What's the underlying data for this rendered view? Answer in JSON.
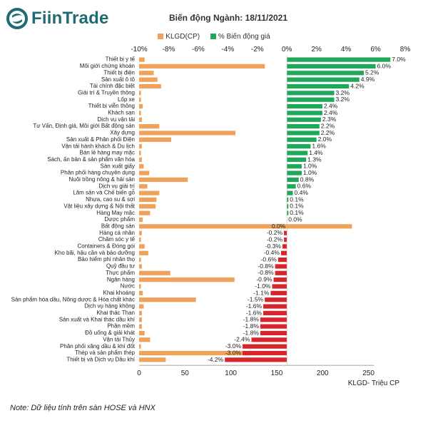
{
  "brand": {
    "name": "FiinTrade"
  },
  "note": "Note: Dữ liệu tính trên sàn HOSE và HNX",
  "colors": {
    "orange": "#F0A25A",
    "green": "#1FA85A",
    "red": "#D7262B",
    "axis": "#888888",
    "text": "#222222",
    "brand": "#1e6b73"
  },
  "chart_data": {
    "type": "bar",
    "title": "Biến động Ngành: 18/11/2021",
    "legend": [
      "KLGD(CP)",
      "% Biến động giá"
    ],
    "legend_position": "top",
    "categories": [
      "Thiết bị y tế",
      "Môi giới chứng khoán",
      "Thiết bị điện",
      "Sản xuất ô tô",
      "Tài chính đặc biệt",
      "Giải trí & Truyền thông",
      "Lốp xe",
      "Thiết bị viễn thông",
      "Khách sạn",
      "Dịch vụ vận tải",
      "Tư Vấn, Định giá, Môi giới Bất động sản",
      "Xây dựng",
      "Sản xuất & Phân phối Điện",
      "Vận tải hành khách & Du lịch",
      "Bán lẻ hàng may mặc",
      "Sách, ấn bản & sản phẩm văn hóa",
      "Sản xuất giấy",
      "Phân phối hàng chuyên dụng",
      "Nuôi trồng nông & hải sản",
      "Dịch vụ giải trí",
      "Lâm sản và Chế biến gỗ",
      "Nhựa, cao su & sợi",
      "Vật liệu xây dựng & Nội thất",
      "Hàng May mặc",
      "Dược phẩm",
      "Bất động sản",
      "Hàng cá nhân",
      "Chăm sóc y tế",
      "Containers & Đóng gói",
      "Kho bãi, hậu cần và bảo dưỡng",
      "Bảo hiểm phi nhân thọ",
      "Quỹ đầu tư",
      "Thực phẩm",
      "Ngân hàng",
      "Nước",
      "Khai khoáng",
      "Sản phẩm hóa dầu, Nông dược & Hóa chất khác",
      "Dịch vụ hàng không",
      "Khai thác Than",
      "Sản xuất và Khai thác dầu khí",
      "Phần mềm",
      "Đồ uống & giải khát",
      "Vận tải Thủy",
      "Phân phối xăng dầu & khí đốt",
      "Thép và sản phẩm thép",
      "Thiết bị và Dịch vụ Dầu khí"
    ],
    "series": [
      {
        "name": "KLGD(CP)",
        "unit": "Triệu CP",
        "values": [
          6,
          137,
          16,
          20,
          24,
          2,
          2,
          4,
          2,
          3,
          22,
          105,
          35,
          3,
          2,
          3,
          5,
          11,
          53,
          9,
          22,
          19,
          18,
          12,
          4,
          232,
          3,
          2,
          6,
          10,
          2,
          3,
          34,
          104,
          2,
          4,
          62,
          5,
          3,
          3,
          3,
          6,
          12,
          2,
          135,
          29
        ]
      },
      {
        "name": "% Biến động giá",
        "unit": "%",
        "values": [
          7.0,
          6.0,
          5.2,
          4.9,
          4.2,
          3.2,
          3.2,
          2.4,
          2.4,
          2.3,
          2.2,
          2.2,
          2.0,
          1.6,
          1.4,
          1.3,
          1.0,
          1.0,
          0.8,
          0.6,
          0.4,
          0.1,
          0.1,
          0.1,
          0.0,
          0.0,
          -0.2,
          -0.2,
          -0.3,
          -0.4,
          -0.6,
          -0.8,
          -0.8,
          -0.9,
          -1.0,
          -1.1,
          -1.5,
          -1.6,
          -1.6,
          -1.8,
          -1.8,
          -1.8,
          -2.4,
          -3.0,
          -3.0,
          -4.2
        ],
        "labels": [
          "7.0%",
          "6.0%",
          "5.2%",
          "4.9%",
          "4.2%",
          "3.2%",
          "3.2%",
          "2.4%",
          "2.4%",
          "2.3%",
          "2.2%",
          "2.2%",
          "2.0%",
          "1.6%",
          "1.4%",
          "1.3%",
          "1.0%",
          "1.0%",
          "0.8%",
          "0.6%",
          "0.4%",
          "0.1%",
          "0.1%",
          "0.1%",
          "0.0%",
          "0.0%",
          "-0.2%",
          "-0.2%",
          "-0.3%",
          "-0.4%",
          "-0.6%",
          "-0.8%",
          "-0.8%",
          "-0.9%",
          "-1.0%",
          "-1.1%",
          "-1.5%",
          "-1.6%",
          "-1.6%",
          "-1.8%",
          "-1.8%",
          "-1.8%",
          "-2.4%",
          "-3.0%",
          "-3.0%",
          "-4.2%"
        ]
      }
    ],
    "top_axis": {
      "range": [
        -10,
        8
      ],
      "ticks": [
        "-10%",
        "-8%",
        "-6%",
        "-4%",
        "-2%",
        "0%",
        "2%",
        "4%",
        "6%",
        "8%"
      ]
    },
    "bottom_axis": {
      "range": [
        0,
        250
      ],
      "ticks": [
        "0",
        "50",
        "100",
        "150",
        "200",
        "250"
      ],
      "label": "KLGD- Triệu CP"
    },
    "grid": false
  }
}
